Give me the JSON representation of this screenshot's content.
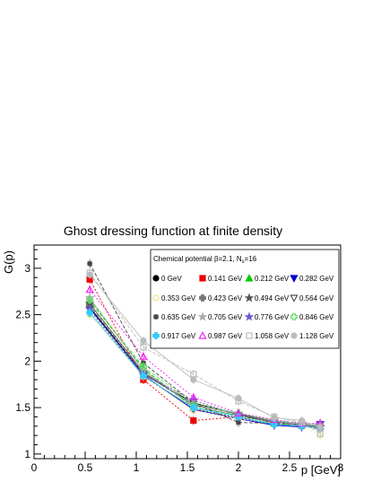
{
  "chart_data": {
    "type": "line",
    "title": "Ghost dressing function at finite density",
    "xlabel": "p [GeV]",
    "ylabel": "G(p)",
    "xlim": [
      0,
      3
    ],
    "ylim": [
      0.95,
      3.25
    ],
    "xticks": [
      "0",
      "0.5",
      "1",
      "1.5",
      "2",
      "2.5",
      "3"
    ],
    "yticks": [
      "1",
      "1.5",
      "2",
      "2.5",
      "3"
    ],
    "legend_title": "Chemical potential β=2.1, N",
    "legend_title_sub": "s",
    "legend_title_tail": "=16",
    "legend_position": "top-right",
    "x": [
      0.545,
      1.07,
      1.56,
      2.0,
      2.35,
      2.62,
      2.8
    ],
    "series": [
      {
        "name": "0 GeV",
        "color": "#000000",
        "marker": "circle",
        "values": [
          2.58,
          1.86,
          1.55,
          1.43,
          1.33,
          1.3,
          1.3
        ]
      },
      {
        "name": "0.141 GeV",
        "color": "#ee0000",
        "marker": "square",
        "values": [
          2.88,
          1.8,
          1.36,
          1.4,
          1.35,
          1.33,
          1.31
        ]
      },
      {
        "name": "0.212 GeV",
        "color": "#00cc00",
        "marker": "triangle-up",
        "values": [
          2.65,
          1.92,
          1.5,
          1.42,
          1.33,
          1.31,
          1.3
        ]
      },
      {
        "name": "0.282 GeV",
        "color": "#0000cc",
        "marker": "triangle-down",
        "values": [
          2.57,
          1.85,
          1.48,
          1.38,
          1.31,
          1.29,
          1.32
        ]
      },
      {
        "name": "0.353 GeV",
        "color": "#f0e68c",
        "marker": "circle-open",
        "values": [
          2.5,
          1.83,
          1.47,
          1.38,
          1.33,
          1.3,
          1.2
        ]
      },
      {
        "name": "0.423 GeV",
        "color": "#777777",
        "marker": "cross",
        "values": [
          2.6,
          1.87,
          1.52,
          1.41,
          1.34,
          1.31,
          1.28
        ]
      },
      {
        "name": "0.494 GeV",
        "color": "#555555",
        "marker": "star",
        "values": [
          2.62,
          1.88,
          1.53,
          1.43,
          1.35,
          1.32,
          1.29
        ]
      },
      {
        "name": "0.564 GeV",
        "color": "#555555",
        "marker": "triangle-down-open",
        "values": [
          2.55,
          1.84,
          1.49,
          1.39,
          1.32,
          1.3,
          1.28
        ]
      },
      {
        "name": "0.635 GeV",
        "color": "#444444",
        "marker": "asterisk",
        "values": [
          3.05,
          1.98,
          1.55,
          1.34,
          1.33,
          1.3,
          1.27
        ]
      },
      {
        "name": "0.705 GeV",
        "color": "#aaaaaa",
        "marker": "star",
        "values": [
          2.68,
          1.9,
          1.52,
          1.44,
          1.36,
          1.32,
          1.3
        ]
      },
      {
        "name": "0.776 GeV",
        "color": "#6a5acd",
        "marker": "star",
        "values": [
          2.56,
          1.86,
          1.58,
          1.42,
          1.35,
          1.31,
          1.33
        ]
      },
      {
        "name": "0.846 GeV",
        "color": "#66dd66",
        "marker": "cross-open",
        "values": [
          2.66,
          1.94,
          1.54,
          1.44,
          1.36,
          1.33,
          1.31
        ]
      },
      {
        "name": "0.917 GeV",
        "color": "#33ccff",
        "marker": "cross",
        "values": [
          2.52,
          1.84,
          1.5,
          1.4,
          1.32,
          1.3,
          1.28
        ]
      },
      {
        "name": "0.987 GeV",
        "color": "#ee22ee",
        "marker": "triangle-up-open",
        "values": [
          2.77,
          2.05,
          1.61,
          1.44,
          1.37,
          1.33,
          1.33
        ]
      },
      {
        "name": "1.058 GeV",
        "color": "#bbbbbb",
        "marker": "square-open",
        "values": [
          2.95,
          2.15,
          1.86,
          1.57,
          1.4,
          1.34,
          1.22
        ]
      },
      {
        "name": "1.128 GeV",
        "color": "#bbbbbb",
        "marker": "circle",
        "values": [
          2.93,
          2.22,
          1.8,
          1.6,
          1.39,
          1.36,
          1.29
        ]
      }
    ]
  }
}
